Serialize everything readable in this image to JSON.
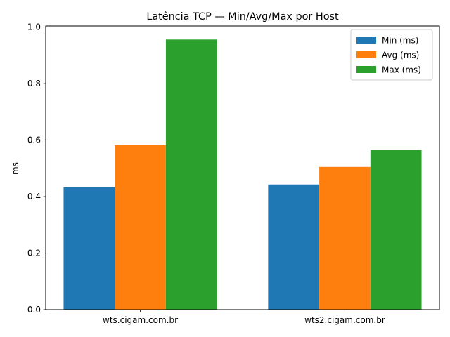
{
  "chart_data": {
    "type": "bar",
    "title": "Latência TCP — Min/Avg/Max por Host",
    "xlabel": "",
    "ylabel": "ms",
    "categories": [
      "wts.cigam.com.br",
      "wts2.cigam.com.br"
    ],
    "series": [
      {
        "name": "Min (ms)",
        "color": "#1f77b4",
        "values": [
          0.433,
          0.443
        ]
      },
      {
        "name": "Avg (ms)",
        "color": "#ff7f0e",
        "values": [
          0.582,
          0.505
        ]
      },
      {
        "name": "Max (ms)",
        "color": "#2ca02c",
        "values": [
          0.956,
          0.565
        ]
      }
    ],
    "ylim": [
      0,
      1.004
    ],
    "yticks": [
      0.0,
      0.2,
      0.4,
      0.6,
      0.8,
      1.0
    ],
    "ytick_labels": [
      "0.0",
      "0.2",
      "0.4",
      "0.6",
      "0.8",
      "1.0"
    ],
    "legend": "top-right",
    "grid": false
  }
}
